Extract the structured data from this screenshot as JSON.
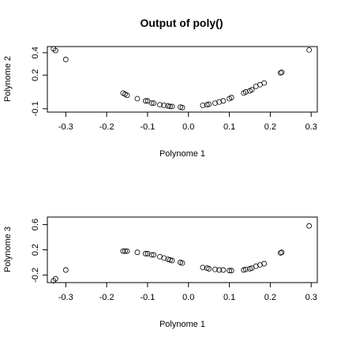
{
  "chart_data": [
    {
      "type": "scatter",
      "title": "Output of poly()",
      "xlabel": "Polynome 1",
      "ylabel": "Polynome 2",
      "xlim": [
        -0.345,
        0.315
      ],
      "ylim": [
        -0.13,
        0.455
      ],
      "xticks": [
        -0.3,
        -0.2,
        -0.1,
        0.0,
        0.1,
        0.2,
        0.3
      ],
      "xtick_labels": [
        "-0.3",
        "-0.2",
        "-0.1",
        "0.0",
        "0.1",
        "0.2",
        "0.3"
      ],
      "yticks": [
        -0.1,
        0.2,
        0.4
      ],
      "ytick_labels": [
        "-0.1",
        "0.2",
        "0.4"
      ],
      "grid": false,
      "x": [
        -0.33,
        -0.325,
        -0.3,
        -0.16,
        -0.155,
        -0.15,
        -0.125,
        -0.105,
        -0.1,
        -0.09,
        -0.085,
        -0.07,
        -0.06,
        -0.05,
        -0.045,
        -0.04,
        -0.02,
        -0.015,
        0.035,
        0.045,
        0.05,
        0.065,
        0.075,
        0.085,
        0.1,
        0.105,
        0.135,
        0.14,
        0.15,
        0.155,
        0.165,
        0.175,
        0.185,
        0.225,
        0.228,
        0.295
      ],
      "y": [
        0.435,
        0.42,
        0.34,
        0.04,
        0.03,
        0.02,
        -0.01,
        -0.03,
        -0.03,
        -0.05,
        -0.05,
        -0.065,
        -0.07,
        -0.075,
        -0.08,
        -0.08,
        -0.085,
        -0.09,
        -0.07,
        -0.065,
        -0.06,
        -0.05,
        -0.04,
        -0.03,
        -0.01,
        0.0,
        0.04,
        0.05,
        0.06,
        0.07,
        0.1,
        0.115,
        0.13,
        0.22,
        0.225,
        0.425
      ]
    },
    {
      "type": "scatter",
      "xlabel": "Polynome 1",
      "ylabel": "Polynome 3",
      "xlim": [
        -0.345,
        0.315
      ],
      "ylim": [
        -0.32,
        0.72
      ],
      "xticks": [
        -0.3,
        -0.2,
        -0.1,
        0.0,
        0.1,
        0.2,
        0.3
      ],
      "xtick_labels": [
        "-0.3",
        "-0.2",
        "-0.1",
        "0.0",
        "0.1",
        "0.2",
        "0.3"
      ],
      "yticks": [
        -0.2,
        0.2,
        0.6
      ],
      "ytick_labels": [
        "-0.2",
        "0.2",
        "0.6"
      ],
      "grid": false,
      "x": [
        -0.33,
        -0.325,
        -0.3,
        -0.16,
        -0.155,
        -0.15,
        -0.125,
        -0.105,
        -0.1,
        -0.09,
        -0.085,
        -0.07,
        -0.06,
        -0.05,
        -0.045,
        -0.04,
        -0.02,
        -0.015,
        0.035,
        0.045,
        0.05,
        0.065,
        0.075,
        0.085,
        0.1,
        0.105,
        0.135,
        0.14,
        0.15,
        0.155,
        0.165,
        0.175,
        0.185,
        0.225,
        0.228,
        0.295
      ],
      "y": [
        -0.29,
        -0.26,
        -0.12,
        0.18,
        0.18,
        0.18,
        0.16,
        0.14,
        0.14,
        0.12,
        0.12,
        0.09,
        0.07,
        0.05,
        0.04,
        0.03,
        0.0,
        -0.01,
        -0.08,
        -0.09,
        -0.1,
        -0.11,
        -0.12,
        -0.12,
        -0.13,
        -0.13,
        -0.12,
        -0.11,
        -0.1,
        -0.09,
        -0.06,
        -0.04,
        -0.02,
        0.15,
        0.16,
        0.58
      ]
    }
  ]
}
